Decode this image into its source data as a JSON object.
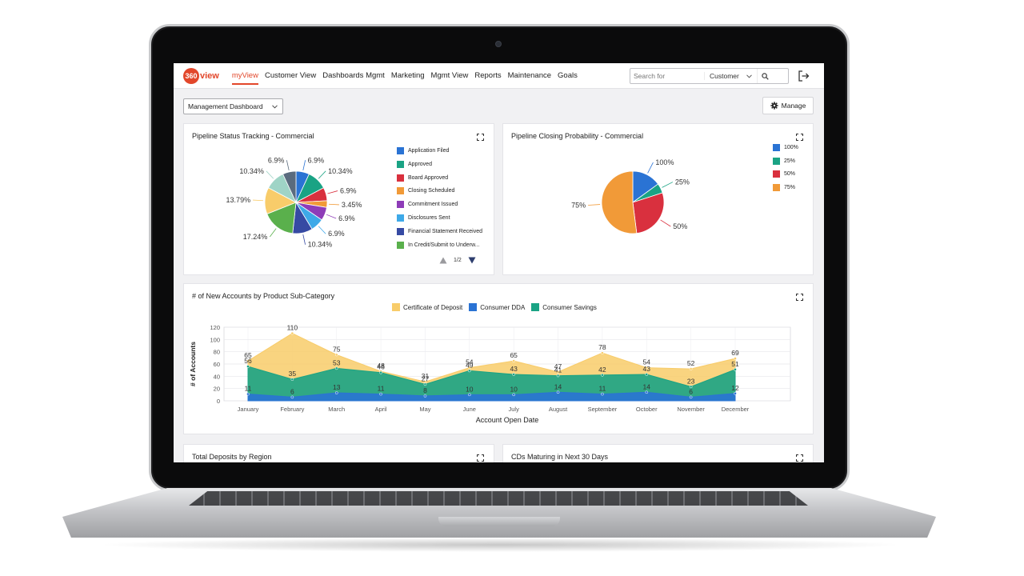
{
  "app": {
    "logo_mark": "360",
    "logo_word": "view"
  },
  "nav": {
    "items": [
      {
        "label": "myView",
        "active": true
      },
      {
        "label": "Customer View",
        "active": false
      },
      {
        "label": "Dashboards Mgmt",
        "active": false
      },
      {
        "label": "Marketing",
        "active": false
      },
      {
        "label": "Mgmt View",
        "active": false
      },
      {
        "label": "Reports",
        "active": false
      },
      {
        "label": "Maintenance",
        "active": false
      },
      {
        "label": "Goals",
        "active": false
      }
    ]
  },
  "search": {
    "placeholder": "Search for",
    "scope": "Customer"
  },
  "toolbar": {
    "dashboard_select": "Management Dashboard",
    "manage_label": "Manage"
  },
  "colors": {
    "accent": "#e2472b",
    "blue": "#2a73d4",
    "teal": "#1aa384",
    "red": "#d9303e",
    "orange": "#f19a38",
    "purple": "#8e3cb8",
    "lightblue": "#3ea9e8",
    "navy": "#364aa3",
    "green": "#5ab04c",
    "yellow": "#f8cc6a",
    "slate": "#5a6b7e",
    "mint": "#9fd4c6"
  },
  "cards": {
    "pipeline_status": {
      "title": "Pipeline Status Tracking - Commercial",
      "pager": "1/2",
      "legend": [
        {
          "label": "Application Filed",
          "color": "#2a73d4"
        },
        {
          "label": "Approved",
          "color": "#1aa384"
        },
        {
          "label": "Board Approved",
          "color": "#d9303e"
        },
        {
          "label": "Closing Scheduled",
          "color": "#f19a38"
        },
        {
          "label": "Commitment Issued",
          "color": "#8e3cb8"
        },
        {
          "label": "Disclosures Sent",
          "color": "#3ea9e8"
        },
        {
          "label": "Financial Statement Received",
          "color": "#364aa3"
        },
        {
          "label": "In Credit/Submit to Underw...",
          "color": "#5ab04c"
        }
      ]
    },
    "closing_probability": {
      "title": "Pipeline Closing Probability - Commercial",
      "legend": [
        {
          "label": "100%",
          "color": "#2a73d4"
        },
        {
          "label": "25%",
          "color": "#1aa384"
        },
        {
          "label": "50%",
          "color": "#d9303e"
        },
        {
          "label": "75%",
          "color": "#f19a38"
        }
      ]
    },
    "new_accounts": {
      "title": "# of New Accounts by Product Sub-Category",
      "legend": [
        {
          "label": "Certificate of Deposit",
          "color": "#f8cc6a"
        },
        {
          "label": "Consumer DDA",
          "color": "#2a73d4"
        },
        {
          "label": "Consumer Savings",
          "color": "#1aa384"
        }
      ]
    },
    "total_deposits": {
      "title": "Total Deposits by Region"
    },
    "cds_maturing": {
      "title": "CDs Maturing in Next 30 Days"
    }
  },
  "chart_data": [
    {
      "type": "pie",
      "labels": [
        "6.9%",
        "10.34%",
        "6.9%",
        "3.45%",
        "6.9%",
        "6.9%",
        "10.34%",
        "17.24%",
        "13.79%",
        "10.34%",
        "6.9%"
      ],
      "values": [
        6.9,
        10.34,
        6.9,
        3.45,
        6.9,
        6.9,
        10.34,
        17.24,
        13.79,
        10.34,
        6.9
      ],
      "colors": [
        "#2a73d4",
        "#1aa384",
        "#d9303e",
        "#f19a38",
        "#8e3cb8",
        "#3ea9e8",
        "#364aa3",
        "#5ab04c",
        "#f8cc6a",
        "#9fd4c6",
        "#5a6b7e"
      ]
    },
    {
      "type": "pie",
      "labels": [
        "100%",
        "25%",
        "50%",
        "75%"
      ],
      "values": [
        15,
        5,
        28,
        52
      ],
      "colors": [
        "#2a73d4",
        "#1aa384",
        "#d9303e",
        "#f19a38"
      ]
    },
    {
      "type": "area",
      "categories": [
        "January",
        "February",
        "March",
        "April",
        "May",
        "June",
        "July",
        "August",
        "September",
        "October",
        "November",
        "December"
      ],
      "xlabel": "Account Open Date",
      "ylabel": "# of Accounts",
      "ylim": [
        0,
        120
      ],
      "yticks": [
        0,
        20,
        40,
        60,
        80,
        100,
        120
      ],
      "series": [
        {
          "name": "Certificate of Deposit",
          "color": "#f8cc6a",
          "values": [
            65,
            110,
            75,
            48,
            31,
            54,
            65,
            47,
            78,
            54,
            52,
            69
          ]
        },
        {
          "name": "Consumer Savings",
          "color": "#1aa384",
          "values": [
            56,
            35,
            53,
            46,
            27,
            49,
            43,
            41,
            42,
            43,
            23,
            51
          ]
        },
        {
          "name": "Consumer DDA",
          "color": "#2a73d4",
          "values": [
            11,
            6,
            13,
            11,
            8,
            10,
            10,
            14,
            11,
            14,
            6,
            12
          ]
        }
      ]
    }
  ]
}
